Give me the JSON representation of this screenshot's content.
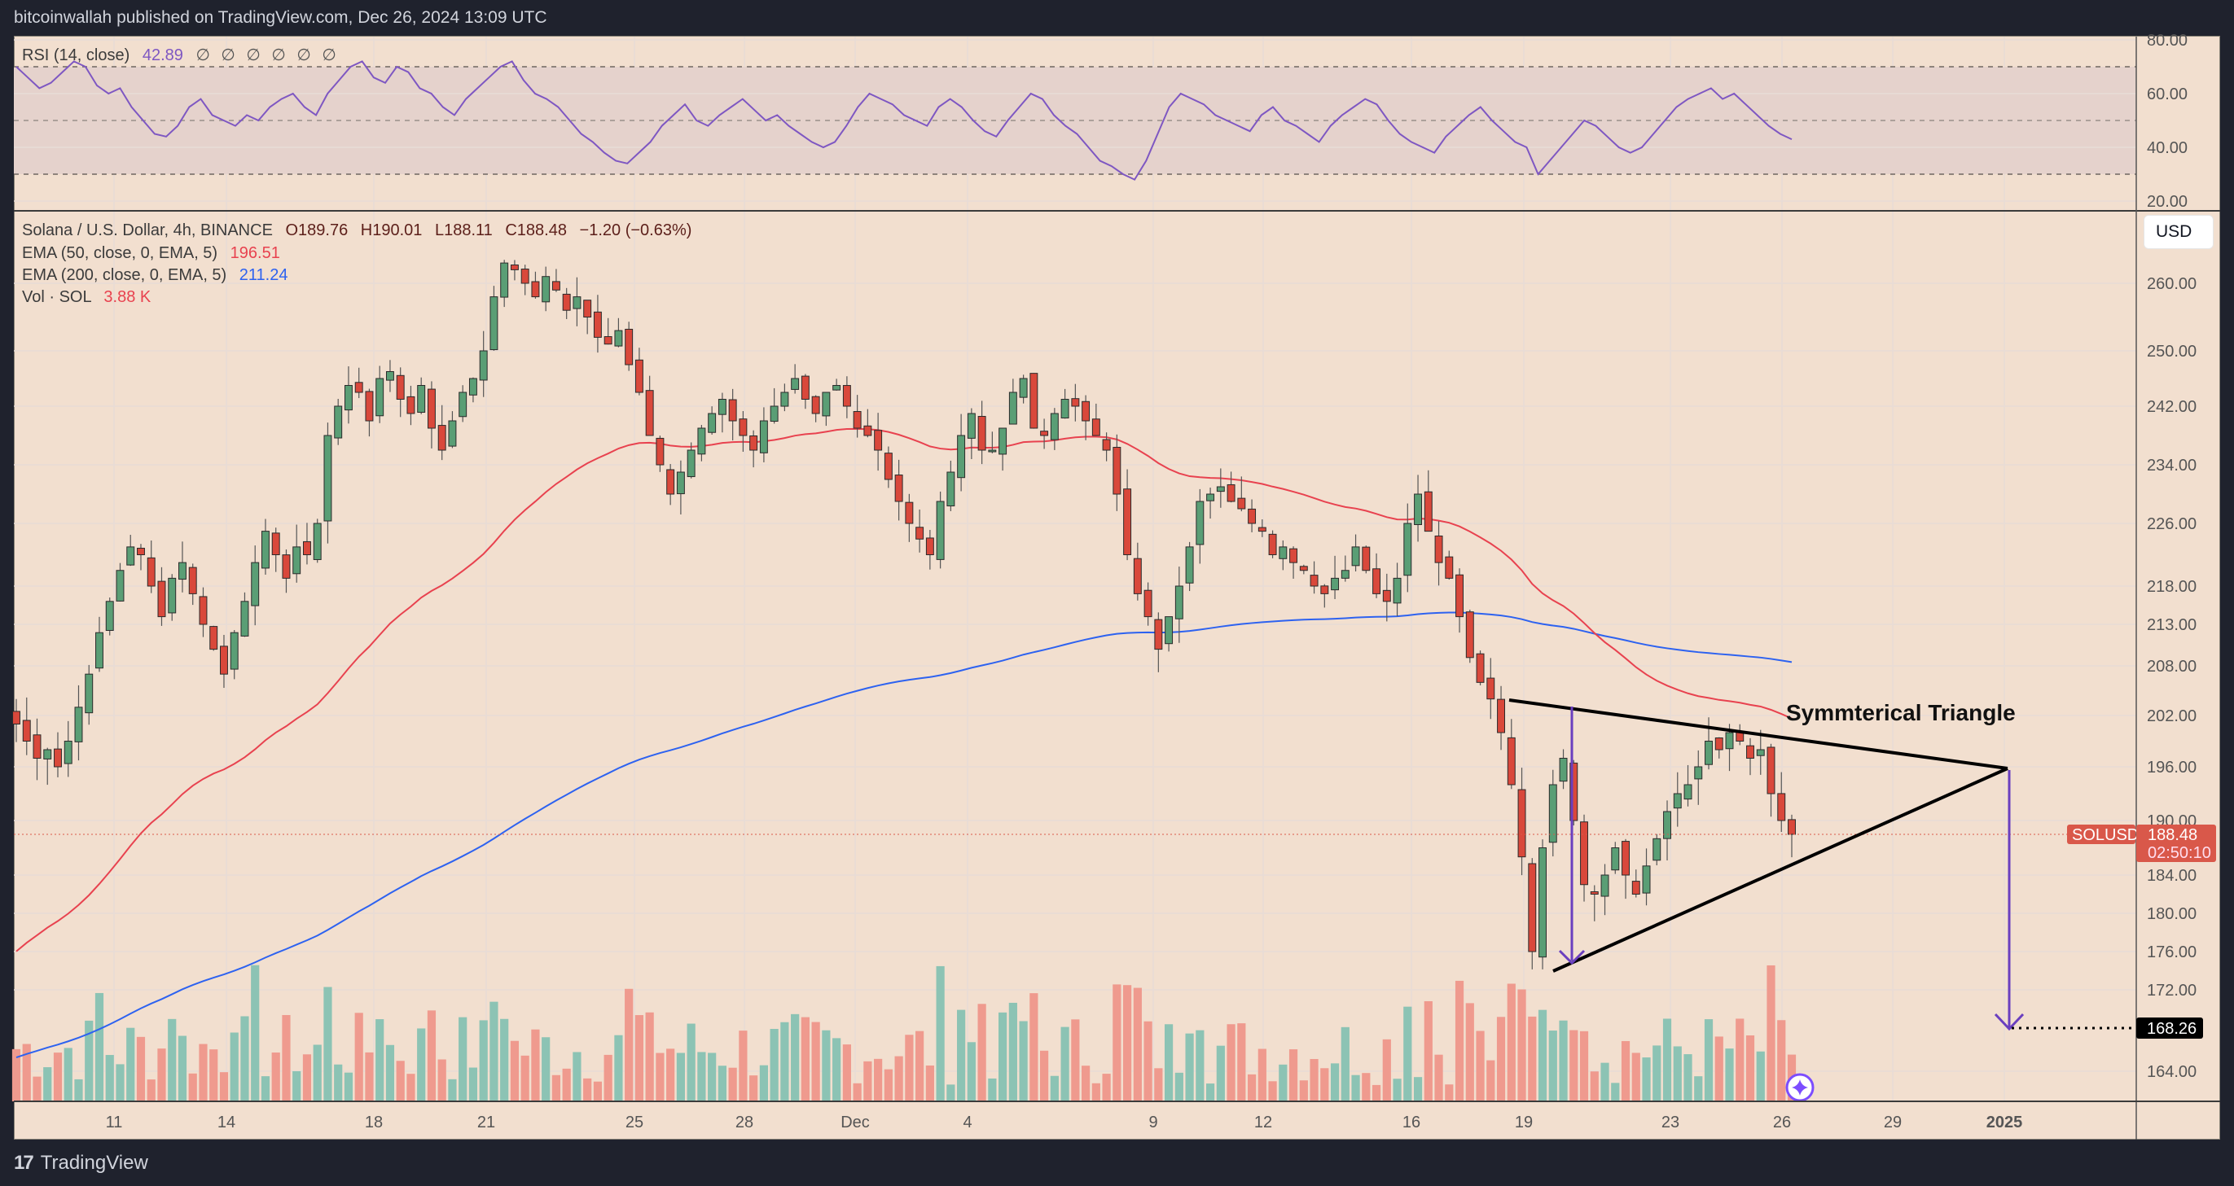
{
  "header": {
    "published_text": "bitcoinwallah published on TradingView.com, Dec 26, 2024 13:09 UTC"
  },
  "rsi_legend": {
    "label": "RSI (14, close)",
    "value": "42.89",
    "nulls": "∅ ∅ ∅ ∅ ∅ ∅"
  },
  "main_legend": {
    "symbol": "Solana / U.S. Dollar, 4h, BINANCE",
    "open": "O189.76",
    "high": "H190.01",
    "low": "L188.11",
    "close": "C188.48",
    "change": "−1.20 (−0.63%)",
    "ema50_label": "EMA (50, close, 0, EMA, 5)",
    "ema50_value": "196.51",
    "ema200_label": "EMA (200, close, 0, EMA, 5)",
    "ema200_value": "211.24",
    "vol_label": "Vol · SOL",
    "vol_value": "3.88 K"
  },
  "currency_button": "USD",
  "price_tag": {
    "symbol": "SOLUSD",
    "price": "188.48",
    "countdown": "02:50:10"
  },
  "target_tag": "168.26",
  "annotation": "Symmterical Triangle",
  "footer": {
    "brand": "TradingView",
    "logo": "17"
  },
  "colors": {
    "background": "#f2dfcf",
    "up": "#5a9e75",
    "down": "#d9483b",
    "ema50": "#e8424f",
    "ema200": "#2d62f0",
    "rsi": "#7e57c2",
    "vol_up": "#8cc3b4",
    "vol_down": "#ef9a8e",
    "arrow": "#6a3fbf",
    "tag": "#d9584a"
  },
  "chart_data": [
    {
      "type": "line",
      "title": "RSI (14, close)",
      "ylim": [
        20,
        80
      ],
      "yticks": [
        "80.00",
        "60.00",
        "40.00",
        "20.00"
      ],
      "bands": [
        30,
        50,
        70
      ],
      "last_value": 42.89,
      "values": [
        70,
        66,
        62,
        64,
        68,
        72,
        70,
        63,
        60,
        62,
        55,
        50,
        45,
        44,
        48,
        55,
        58,
        52,
        50,
        48,
        52,
        50,
        55,
        58,
        60,
        55,
        52,
        60,
        65,
        70,
        72,
        66,
        64,
        70,
        68,
        62,
        60,
        55,
        52,
        58,
        62,
        66,
        70,
        72,
        65,
        60,
        58,
        55,
        50,
        45,
        42,
        38,
        35,
        34,
        38,
        42,
        48,
        52,
        56,
        50,
        48,
        52,
        55,
        58,
        54,
        50,
        52,
        48,
        45,
        42,
        40,
        42,
        48,
        55,
        60,
        58,
        56,
        52,
        50,
        48,
        55,
        58,
        55,
        50,
        46,
        44,
        50,
        55,
        60,
        58,
        52,
        48,
        45,
        40,
        35,
        33,
        30,
        28,
        35,
        45,
        55,
        60,
        58,
        56,
        52,
        50,
        48,
        46,
        52,
        55,
        50,
        48,
        45,
        42,
        48,
        52,
        55,
        58,
        56,
        50,
        45,
        42,
        40,
        38,
        44,
        48,
        52,
        55,
        50,
        46,
        42,
        40,
        30,
        35,
        40,
        45,
        50,
        48,
        44,
        40,
        38,
        40,
        45,
        50,
        55,
        58,
        60,
        62,
        58,
        60,
        56,
        52,
        48,
        45,
        43
      ]
    },
    {
      "type": "candlestick",
      "title": "Solana / U.S. Dollar, 4h, BINANCE",
      "x_ticks": [
        "11",
        "14",
        "18",
        "21",
        "25",
        "28",
        "Dec",
        "4",
        "9",
        "12",
        "16",
        "19",
        "23",
        "26",
        "29",
        "2025"
      ],
      "y_ticks": [
        "260.00",
        "250.00",
        "242.00",
        "234.00",
        "226.00",
        "218.00",
        "213.00",
        "208.00",
        "202.00",
        "196.00",
        "190.00",
        "184.00",
        "180.00",
        "176.00",
        "172.00",
        "164.00"
      ],
      "ylim": [
        161,
        266
      ],
      "last": {
        "open": 189.76,
        "high": 190.01,
        "low": 188.11,
        "close": 188.48,
        "change": -1.2,
        "change_pct": -0.63
      },
      "closes": [
        201,
        199,
        197,
        198,
        196,
        199,
        203,
        207,
        212,
        216,
        220,
        223,
        222,
        218,
        214,
        219,
        221,
        217,
        213,
        210,
        207,
        212,
        216,
        221,
        225,
        222,
        219,
        223,
        222,
        226,
        238,
        242,
        245,
        244,
        240,
        246,
        247,
        243,
        241,
        245,
        239,
        236,
        240,
        244,
        246,
        250,
        258,
        263,
        262,
        260,
        258,
        261,
        259,
        256,
        258,
        255,
        252,
        251,
        253,
        248,
        244,
        238,
        234,
        230,
        233,
        236,
        239,
        241,
        243,
        240,
        238,
        236,
        240,
        242,
        244,
        246,
        243,
        241,
        244,
        245,
        242,
        239,
        238,
        236,
        232,
        229,
        226,
        224,
        222,
        229,
        233,
        238,
        241,
        236,
        236,
        239,
        244,
        246,
        239,
        238,
        241,
        243,
        242,
        240,
        238,
        236,
        230,
        222,
        217,
        214,
        210,
        214,
        218,
        223,
        229,
        230,
        231,
        229,
        228,
        226,
        225,
        222,
        223,
        221,
        220,
        218,
        217,
        219,
        220,
        223,
        220,
        217,
        216,
        219,
        226,
        230,
        225,
        221,
        219,
        214,
        209,
        206,
        204,
        200,
        194,
        186,
        176,
        187,
        194,
        197,
        190,
        183,
        182,
        184,
        187,
        184,
        182,
        185,
        188,
        191,
        193,
        194,
        196,
        199,
        198,
        200,
        199,
        197,
        198,
        193,
        190,
        188.48
      ],
      "ema50_last": 196.51,
      "ema200_last": 211.24,
      "volume_last": "3.88K",
      "annotations": {
        "triangle_upper": [
          [
            204,
            0
          ],
          [
            195.5,
            1
          ]
        ],
        "triangle_lower": [
          [
            174.5,
            0
          ],
          [
            195.5,
            1
          ]
        ],
        "label": "Symmterical Triangle",
        "measured_move_target": 168.26
      }
    }
  ]
}
